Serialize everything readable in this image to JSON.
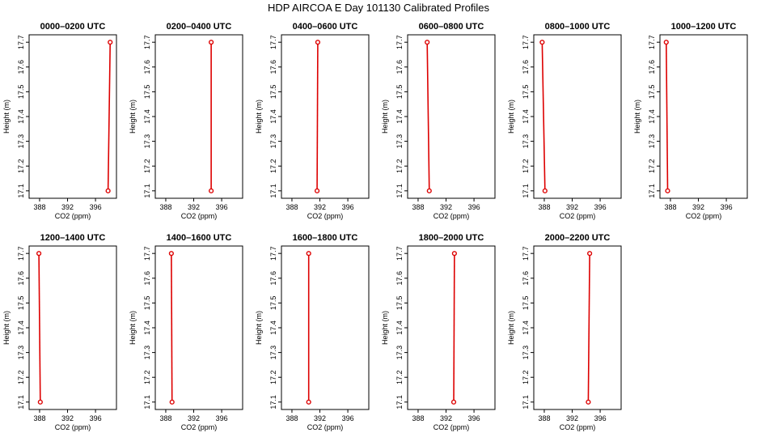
{
  "title": "HDP AIRCOA E  Day 101130  Calibrated Profiles",
  "colors": {
    "profile": "#dd0000",
    "axis": "#000000"
  },
  "chart_data": [
    {
      "type": "line",
      "title": "0000–0200 UTC",
      "xlabel": "CO2 (ppm)",
      "ylabel": "Height (m)",
      "xlim": [
        386.5,
        399
      ],
      "ylim": [
        17.07,
        17.73
      ],
      "xticks": [
        388,
        392,
        396
      ],
      "yticks": [
        17.1,
        17.2,
        17.3,
        17.4,
        17.5,
        17.6,
        17.7
      ],
      "grid": false,
      "points": [
        {
          "x": 397.8,
          "y": 17.1
        },
        {
          "x": 398.1,
          "y": 17.7
        }
      ]
    },
    {
      "type": "line",
      "title": "0200–0400 UTC",
      "xlabel": "CO2 (ppm)",
      "ylabel": "Height (m)",
      "xlim": [
        386.5,
        399
      ],
      "ylim": [
        17.07,
        17.73
      ],
      "xticks": [
        388,
        392,
        396
      ],
      "yticks": [
        17.1,
        17.2,
        17.3,
        17.4,
        17.5,
        17.6,
        17.7
      ],
      "grid": false,
      "points": [
        {
          "x": 394.5,
          "y": 17.1
        },
        {
          "x": 394.5,
          "y": 17.7
        }
      ]
    },
    {
      "type": "line",
      "title": "0400–0600 UTC",
      "xlabel": "CO2 (ppm)",
      "ylabel": "Height (m)",
      "xlim": [
        386.5,
        399
      ],
      "ylim": [
        17.07,
        17.73
      ],
      "xticks": [
        388,
        392,
        396
      ],
      "yticks": [
        17.1,
        17.2,
        17.3,
        17.4,
        17.5,
        17.6,
        17.7
      ],
      "grid": false,
      "points": [
        {
          "x": 391.6,
          "y": 17.1
        },
        {
          "x": 391.7,
          "y": 17.7
        }
      ]
    },
    {
      "type": "line",
      "title": "0600–0800 UTC",
      "xlabel": "CO2 (ppm)",
      "ylabel": "Height (m)",
      "xlim": [
        386.5,
        399
      ],
      "ylim": [
        17.07,
        17.73
      ],
      "xticks": [
        388,
        392,
        396
      ],
      "yticks": [
        17.1,
        17.2,
        17.3,
        17.4,
        17.5,
        17.6,
        17.7
      ],
      "grid": false,
      "points": [
        {
          "x": 389.6,
          "y": 17.1
        },
        {
          "x": 389.3,
          "y": 17.7
        }
      ]
    },
    {
      "type": "line",
      "title": "0800–1000 UTC",
      "xlabel": "CO2 (ppm)",
      "ylabel": "Height (m)",
      "xlim": [
        386.5,
        399
      ],
      "ylim": [
        17.07,
        17.73
      ],
      "xticks": [
        388,
        392,
        396
      ],
      "yticks": [
        17.1,
        17.2,
        17.3,
        17.4,
        17.5,
        17.6,
        17.7
      ],
      "grid": false,
      "points": [
        {
          "x": 388.1,
          "y": 17.1
        },
        {
          "x": 387.7,
          "y": 17.7
        }
      ]
    },
    {
      "type": "line",
      "title": "1000–1200 UTC",
      "xlabel": "CO2 (ppm)",
      "ylabel": "Height (m)",
      "xlim": [
        386.5,
        399
      ],
      "ylim": [
        17.07,
        17.73
      ],
      "xticks": [
        388,
        392,
        396
      ],
      "yticks": [
        17.1,
        17.2,
        17.3,
        17.4,
        17.5,
        17.6,
        17.7
      ],
      "grid": false,
      "points": [
        {
          "x": 387.6,
          "y": 17.1
        },
        {
          "x": 387.4,
          "y": 17.7
        }
      ]
    },
    {
      "type": "line",
      "title": "1200–1400 UTC",
      "xlabel": "CO2 (ppm)",
      "ylabel": "Height (m)",
      "xlim": [
        386.5,
        399
      ],
      "ylim": [
        17.07,
        17.73
      ],
      "xticks": [
        388,
        392,
        396
      ],
      "yticks": [
        17.1,
        17.2,
        17.3,
        17.4,
        17.5,
        17.6,
        17.7
      ],
      "grid": false,
      "points": [
        {
          "x": 388.1,
          "y": 17.1
        },
        {
          "x": 387.9,
          "y": 17.7
        }
      ]
    },
    {
      "type": "line",
      "title": "1400–1600 UTC",
      "xlabel": "CO2 (ppm)",
      "ylabel": "Height (m)",
      "xlim": [
        386.5,
        399
      ],
      "ylim": [
        17.07,
        17.73
      ],
      "xticks": [
        388,
        392,
        396
      ],
      "yticks": [
        17.1,
        17.2,
        17.3,
        17.4,
        17.5,
        17.6,
        17.7
      ],
      "grid": false,
      "points": [
        {
          "x": 388.9,
          "y": 17.1
        },
        {
          "x": 388.8,
          "y": 17.7
        }
      ]
    },
    {
      "type": "line",
      "title": "1600–1800 UTC",
      "xlabel": "CO2 (ppm)",
      "ylabel": "Height (m)",
      "xlim": [
        386.5,
        399
      ],
      "ylim": [
        17.07,
        17.73
      ],
      "xticks": [
        388,
        392,
        396
      ],
      "yticks": [
        17.1,
        17.2,
        17.3,
        17.4,
        17.5,
        17.6,
        17.7
      ],
      "grid": false,
      "points": [
        {
          "x": 390.4,
          "y": 17.1
        },
        {
          "x": 390.4,
          "y": 17.7
        }
      ]
    },
    {
      "type": "line",
      "title": "1800–2000 UTC",
      "xlabel": "CO2 (ppm)",
      "ylabel": "Height (m)",
      "xlim": [
        386.5,
        399
      ],
      "ylim": [
        17.07,
        17.73
      ],
      "xticks": [
        388,
        392,
        396
      ],
      "yticks": [
        17.1,
        17.2,
        17.3,
        17.4,
        17.5,
        17.6,
        17.7
      ],
      "grid": false,
      "points": [
        {
          "x": 393.1,
          "y": 17.1
        },
        {
          "x": 393.2,
          "y": 17.7
        }
      ]
    },
    {
      "type": "line",
      "title": "2000–2200 UTC",
      "xlabel": "CO2 (ppm)",
      "ylabel": "Height (m)",
      "xlim": [
        386.5,
        399
      ],
      "ylim": [
        17.07,
        17.73
      ],
      "xticks": [
        388,
        392,
        396
      ],
      "yticks": [
        17.1,
        17.2,
        17.3,
        17.4,
        17.5,
        17.6,
        17.7
      ],
      "grid": false,
      "points": [
        {
          "x": 394.3,
          "y": 17.1
        },
        {
          "x": 394.5,
          "y": 17.7
        }
      ]
    }
  ]
}
